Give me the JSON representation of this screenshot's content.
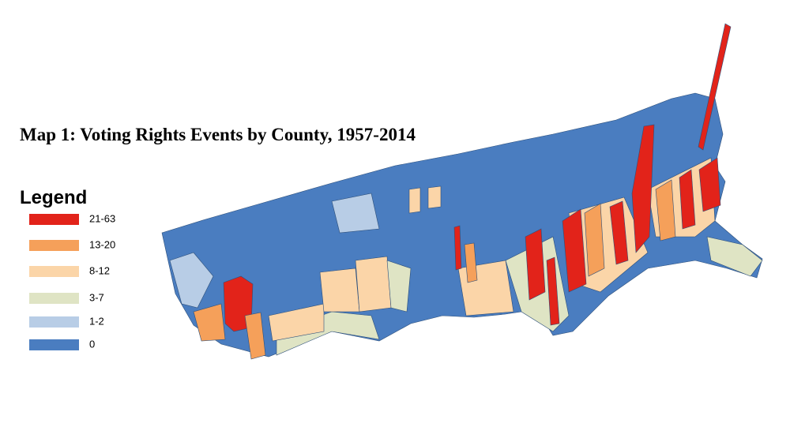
{
  "title": "Map 1:  Voting Rights Events by County, 1957-2014",
  "legend": {
    "title": "Legend",
    "items": [
      {
        "label": "21-63",
        "color": "#e2231a"
      },
      {
        "label": "13-20",
        "color": "#f5a05a"
      },
      {
        "label": "8-12",
        "color": "#fbd5a8"
      },
      {
        "label": "3-7",
        "color": "#dfe4c4"
      },
      {
        "label": "1-2",
        "color": "#b8cde6"
      },
      {
        "label": "0",
        "color": "#4a7dc0"
      }
    ]
  }
}
